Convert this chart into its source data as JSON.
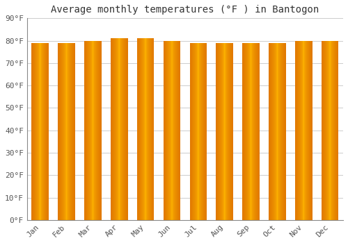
{
  "title": "Average monthly temperatures (°F ) in Bantogon",
  "months": [
    "Jan",
    "Feb",
    "Mar",
    "Apr",
    "May",
    "Jun",
    "Jul",
    "Aug",
    "Sep",
    "Oct",
    "Nov",
    "Dec"
  ],
  "values": [
    79,
    79,
    80,
    81,
    81,
    80,
    79,
    79,
    79,
    79,
    80,
    80
  ],
  "ylim": [
    0,
    90
  ],
  "yticks": [
    0,
    10,
    20,
    30,
    40,
    50,
    60,
    70,
    80,
    90
  ],
  "bar_color_edge": "#E07800",
  "bar_color_center": "#FFB800",
  "background_color": "#FFFFFF",
  "plot_bg_color": "#FFFFFF",
  "grid_color": "#CCCCCC",
  "title_fontsize": 10,
  "tick_fontsize": 8,
  "title_font": "monospace",
  "tick_font": "monospace",
  "bar_width": 0.65,
  "gradient_steps": 60
}
